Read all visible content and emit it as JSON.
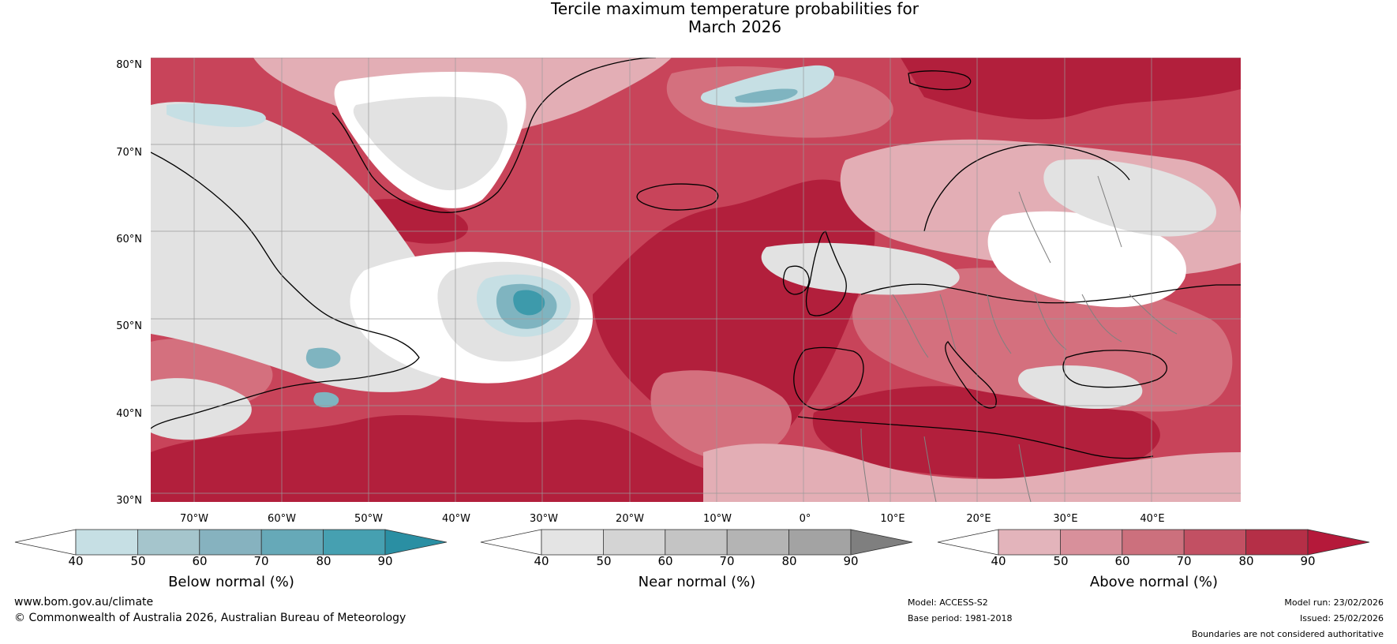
{
  "title": {
    "line1": "Tercile maximum temperature probabilities for",
    "line2": "March 2026"
  },
  "map": {
    "lat_labels": [
      "80°N",
      "70°N",
      "60°N",
      "50°N",
      "40°N",
      "30°N"
    ],
    "lon_labels": [
      "70°W",
      "60°W",
      "50°W",
      "40°W",
      "30°W",
      "20°W",
      "10°W",
      "0°",
      "10°E",
      "20°E",
      "30°E",
      "40°E"
    ],
    "colors": {
      "ocean_above": "#c8445a",
      "above_dark": "#b21f3c",
      "above_mid": "#d4707e",
      "above_light": "#e3aeb5",
      "near_light": "#e2e2e2",
      "near_mid": "#c9c9c9",
      "below_light": "#c6dfe4",
      "below_mid": "#7fb4c0",
      "below_dark": "#3d9aab",
      "white": "#ffffff",
      "coast": "#000000",
      "border": "#808080",
      "grid": "#9a9a9a"
    }
  },
  "colorbars": [
    {
      "name": "below",
      "title": "Below normal (%)",
      "ticks": [
        "40",
        "50",
        "60",
        "70",
        "80",
        "90"
      ],
      "colors": [
        "#ffffff",
        "#c6dfe4",
        "#a5c5cc",
        "#86b2bf",
        "#66a9b8",
        "#46a0b1",
        "#2a8fa3"
      ]
    },
    {
      "name": "near",
      "title": "Near normal (%)",
      "ticks": [
        "40",
        "50",
        "60",
        "70",
        "80",
        "90"
      ],
      "colors": [
        "#ffffff",
        "#e4e4e4",
        "#d4d4d4",
        "#c4c4c4",
        "#b4b4b4",
        "#a3a3a3",
        "#7f7f7f"
      ]
    },
    {
      "name": "above",
      "title": "Above normal (%)",
      "ticks": [
        "40",
        "50",
        "60",
        "70",
        "80",
        "90"
      ],
      "colors": [
        "#ffffff",
        "#e3b4bb",
        "#d8909b",
        "#cc707d",
        "#c25063",
        "#b52f47",
        "#b5193a"
      ]
    }
  ],
  "footer": {
    "site": "www.bom.gov.au/climate",
    "copyright": "© Commonwealth of Australia 2026, Australian Bureau of Meteorology",
    "model": "Model: ACCESS-S2",
    "base_period": "Base period: 1981-2018",
    "model_run": "Model run: 23/02/2026",
    "issued": "Issued: 25/02/2026",
    "disclaimer": "Boundaries are not considered authoritative"
  }
}
